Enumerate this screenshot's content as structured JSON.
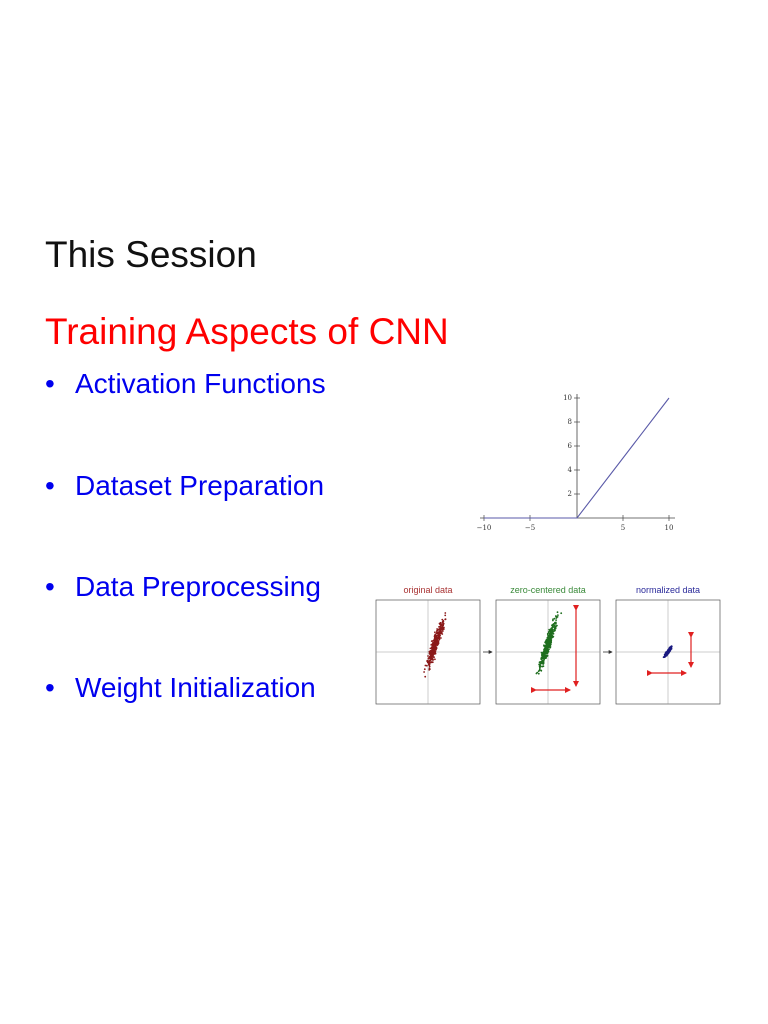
{
  "slide": {
    "title": "This Session",
    "heading": "Training Aspects of CNN",
    "bullets": [
      {
        "text": "Activation Functions"
      },
      {
        "text": "Dataset Preparation"
      },
      {
        "text": "Data Preprocessing"
      },
      {
        "text": "Weight Initialization"
      }
    ]
  },
  "relu_plot": {
    "x_ticks": [
      "−10",
      "−5",
      "5",
      "10"
    ],
    "y_ticks": [
      "10",
      "8",
      "6",
      "4",
      "2"
    ]
  },
  "data_panels": [
    {
      "title": "original data",
      "title_color": "#a83232",
      "point_color": "#8b1a1a"
    },
    {
      "title": "zero-centered data",
      "title_color": "#3a8a3a",
      "point_color": "#1f6e1f"
    },
    {
      "title": "normalized data",
      "title_color": "#2a2a9a",
      "point_color": "#1a1a80"
    }
  ]
}
